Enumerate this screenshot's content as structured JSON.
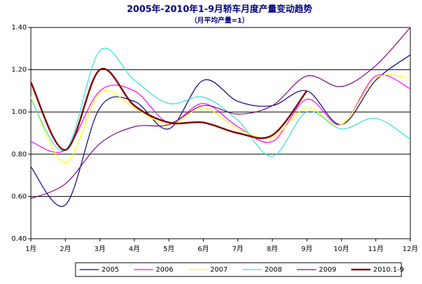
{
  "chart_data": {
    "type": "line",
    "title": "2005年-2010年1-9月轿车月度产量变动趋势",
    "subtitle": "（月平均产量=1）",
    "categories": [
      "1月",
      "2月",
      "3月",
      "4月",
      "5月",
      "6月",
      "7月",
      "8月",
      "9月",
      "10月",
      "11月",
      "12月"
    ],
    "series": [
      {
        "name": "2005",
        "color": "#000080",
        "values": [
          0.74,
          0.56,
          1.02,
          1.05,
          0.92,
          1.15,
          1.05,
          1.03,
          1.1,
          0.94,
          1.15,
          1.27
        ]
      },
      {
        "name": "2006",
        "color": "#ff00ff",
        "values": [
          0.86,
          0.82,
          1.1,
          1.1,
          0.95,
          1.04,
          0.93,
          0.86,
          1.06,
          0.94,
          1.17,
          1.11
        ]
      },
      {
        "name": "2007",
        "color": "#ffff00",
        "values": [
          1.07,
          0.76,
          1.09,
          1.02,
          0.94,
          1.02,
          0.92,
          0.88,
          1.02,
          0.94,
          1.16,
          1.16
        ]
      },
      {
        "name": "2008",
        "color": "#33dddd",
        "values": [
          1.06,
          0.82,
          1.29,
          1.15,
          1.04,
          1.07,
          0.96,
          0.79,
          1.0,
          0.92,
          0.97,
          0.87
        ]
      },
      {
        "name": "2009",
        "color": "#800080",
        "values": [
          0.59,
          0.66,
          0.85,
          0.93,
          0.94,
          1.03,
          0.99,
          1.03,
          1.17,
          1.12,
          1.22,
          1.4
        ]
      },
      {
        "name": "2010.1-9",
        "color": "#800000",
        "values": [
          1.14,
          0.82,
          1.2,
          1.03,
          0.95,
          0.95,
          0.9,
          0.89,
          1.1,
          null,
          null,
          null
        ]
      }
    ],
    "ylim": [
      0.4,
      1.4
    ],
    "yticks": [
      {
        "value": 0.4,
        "label": "0.40"
      },
      {
        "value": 0.6,
        "label": "0.60"
      },
      {
        "value": 0.8,
        "label": "0.80"
      },
      {
        "value": 1.0,
        "label": "1.00"
      },
      {
        "value": 1.2,
        "label": "1.20"
      },
      {
        "value": 1.4,
        "label": "1.40"
      }
    ],
    "grid": true,
    "legend": "bottom"
  }
}
